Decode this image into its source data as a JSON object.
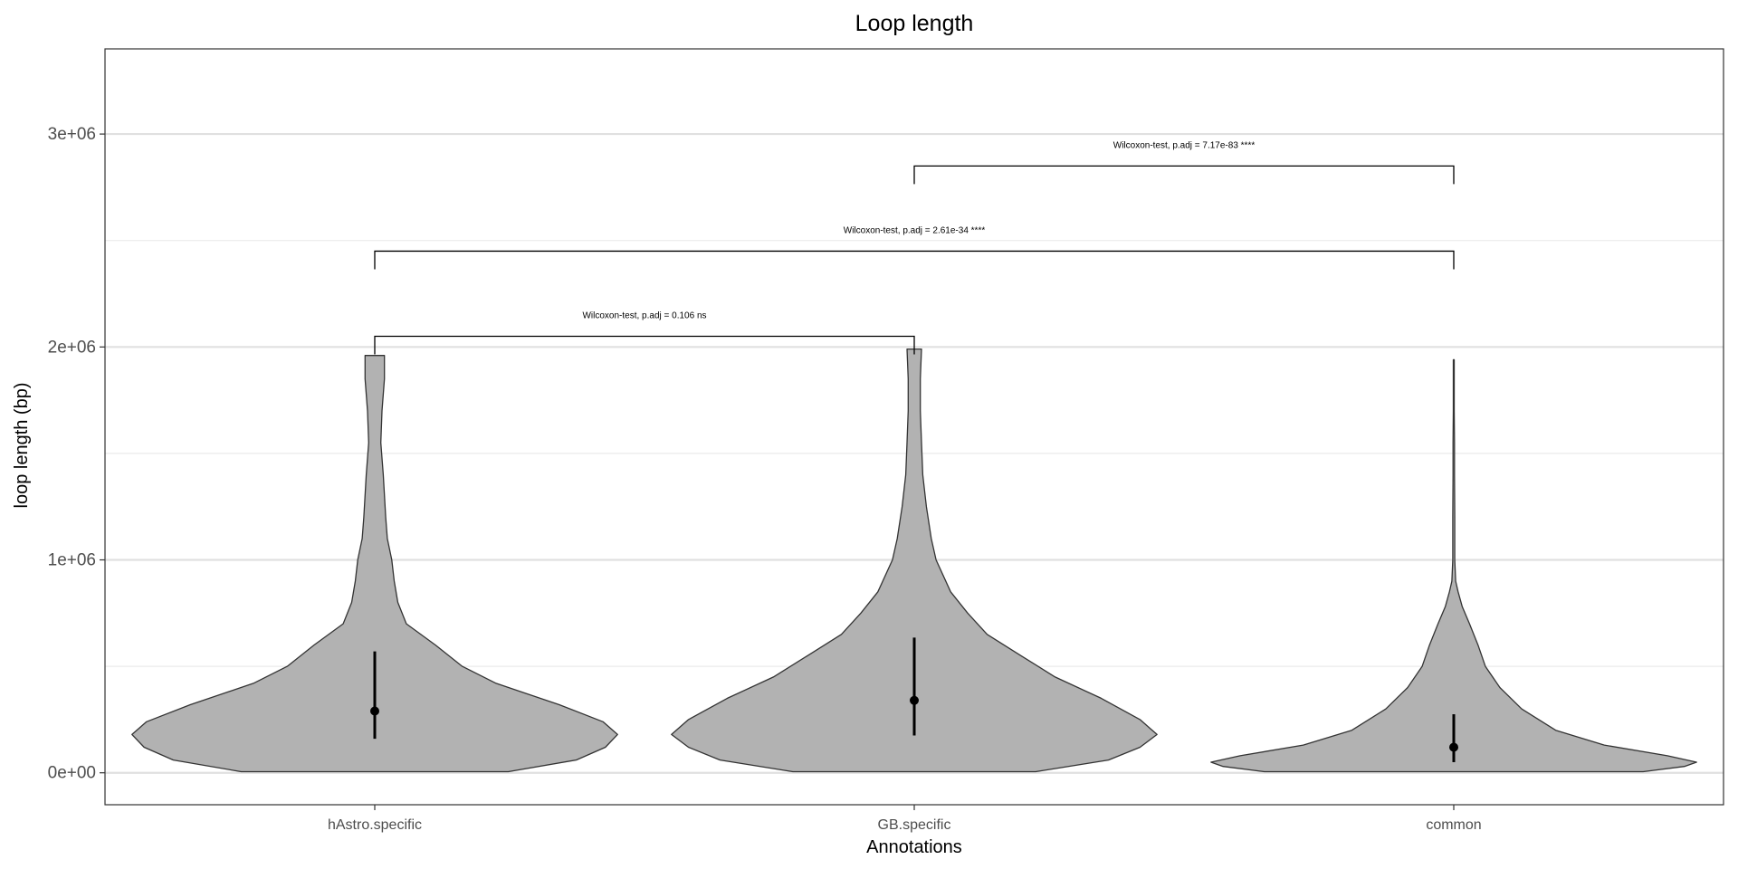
{
  "chart_data": {
    "type": "violin",
    "title": "Loop length",
    "xlabel": "Annotations",
    "ylabel": "loop length (bp)",
    "categories": [
      "hAstro.specific",
      "GB.specific",
      "common"
    ],
    "ylim": [
      -150000,
      3400000
    ],
    "yticks": [
      0,
      1000000,
      2000000,
      3000000
    ],
    "ytick_labels": [
      "0e+00",
      "1e+06",
      "2e+06",
      "3e+06"
    ],
    "minor_grid": [
      500000,
      1500000,
      2500000
    ],
    "grid": true,
    "fill_color": "#b2b2b2",
    "violins": [
      {
        "category": "hAstro.specific",
        "max": 1960000,
        "median": 290000,
        "q1": 160000,
        "q3": 570000,
        "density_profile": [
          [
            5000,
            0.55
          ],
          [
            60000,
            0.83
          ],
          [
            120000,
            0.95
          ],
          [
            180000,
            1.0
          ],
          [
            240000,
            0.94
          ],
          [
            320000,
            0.76
          ],
          [
            420000,
            0.5
          ],
          [
            500000,
            0.36
          ],
          [
            600000,
            0.25
          ],
          [
            700000,
            0.13
          ],
          [
            800000,
            0.095
          ],
          [
            900000,
            0.08
          ],
          [
            1000000,
            0.07
          ],
          [
            1100000,
            0.052
          ],
          [
            1200000,
            0.045
          ],
          [
            1400000,
            0.035
          ],
          [
            1550000,
            0.025
          ],
          [
            1700000,
            0.03
          ],
          [
            1850000,
            0.04
          ],
          [
            1960000,
            0.04
          ]
        ]
      },
      {
        "category": "GB.specific",
        "max": 1990000,
        "median": 340000,
        "q1": 175000,
        "q3": 635000,
        "density_profile": [
          [
            5000,
            0.5
          ],
          [
            60000,
            0.8
          ],
          [
            120000,
            0.93
          ],
          [
            180000,
            1.0
          ],
          [
            250000,
            0.93
          ],
          [
            350000,
            0.77
          ],
          [
            450000,
            0.58
          ],
          [
            550000,
            0.44
          ],
          [
            650000,
            0.3
          ],
          [
            750000,
            0.22
          ],
          [
            850000,
            0.15
          ],
          [
            1000000,
            0.09
          ],
          [
            1100000,
            0.07
          ],
          [
            1250000,
            0.05
          ],
          [
            1400000,
            0.035
          ],
          [
            1550000,
            0.03
          ],
          [
            1700000,
            0.025
          ],
          [
            1850000,
            0.025
          ],
          [
            1990000,
            0.03
          ]
        ]
      },
      {
        "category": "common",
        "max": 1940000,
        "median": 120000,
        "q1": 50000,
        "q3": 275000,
        "density_profile": [
          [
            5000,
            0.78
          ],
          [
            30000,
            0.95
          ],
          [
            50000,
            1.0
          ],
          [
            80000,
            0.88
          ],
          [
            130000,
            0.62
          ],
          [
            200000,
            0.42
          ],
          [
            300000,
            0.28
          ],
          [
            400000,
            0.19
          ],
          [
            500000,
            0.13
          ],
          [
            600000,
            0.1
          ],
          [
            700000,
            0.065
          ],
          [
            780000,
            0.035
          ],
          [
            850000,
            0.018
          ],
          [
            900000,
            0.008
          ],
          [
            1000000,
            0.004
          ],
          [
            1200000,
            0.004
          ],
          [
            1400000,
            0.003
          ],
          [
            1550000,
            0.003
          ],
          [
            1700000,
            0.002
          ],
          [
            1940000,
            0.002
          ]
        ]
      }
    ],
    "comparisons": [
      {
        "from": "hAstro.specific",
        "to": "GB.specific",
        "y": 2050000,
        "label": "Wilcoxon-test, p.adj = 0.106 ns"
      },
      {
        "from": "hAstro.specific",
        "to": "common",
        "y": 2450000,
        "label": "Wilcoxon-test, p.adj = 2.61e-34 ****"
      },
      {
        "from": "GB.specific",
        "to": "common",
        "y": 2850000,
        "label": "Wilcoxon-test, p.adj = 7.17e-83 ****"
      }
    ]
  }
}
